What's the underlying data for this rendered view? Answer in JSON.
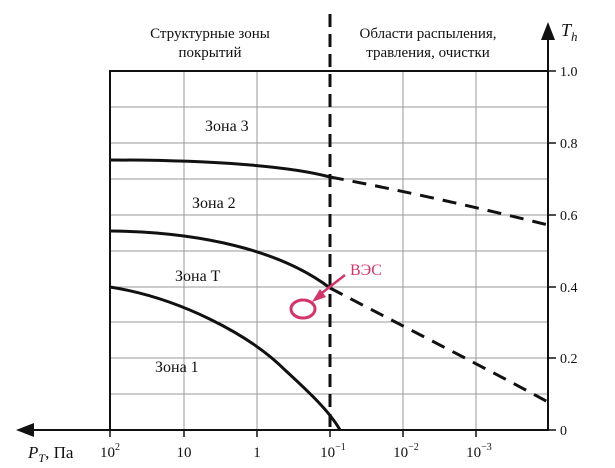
{
  "header": {
    "left_line1": "Структурные зоны",
    "left_line2": "покрытий",
    "right_line1": "Области распыления,",
    "right_line2": "травления, очистки"
  },
  "axes": {
    "y_label_main": "T",
    "y_label_sub": "h",
    "x_label_main": "P",
    "x_label_sub": "T",
    "x_label_unit": ", Па",
    "y_ticks": [
      "0",
      "0.2",
      "0.4",
      "0.6",
      "0.8",
      "1.0"
    ],
    "x_ticks": [
      {
        "base": "10",
        "exp": "2"
      },
      {
        "base": "10",
        "exp": ""
      },
      {
        "base": "1",
        "exp": ""
      },
      {
        "base": "10",
        "exp": "−1"
      },
      {
        "base": "10",
        "exp": "−2"
      },
      {
        "base": "10",
        "exp": "−3"
      }
    ]
  },
  "zones": {
    "zone3": "Зона 3",
    "zone2": "Зона 2",
    "zoneT": "Зона T",
    "zone1": "Зона 1"
  },
  "marker": {
    "label": "ВЭС",
    "color": "#d6336c"
  }
}
